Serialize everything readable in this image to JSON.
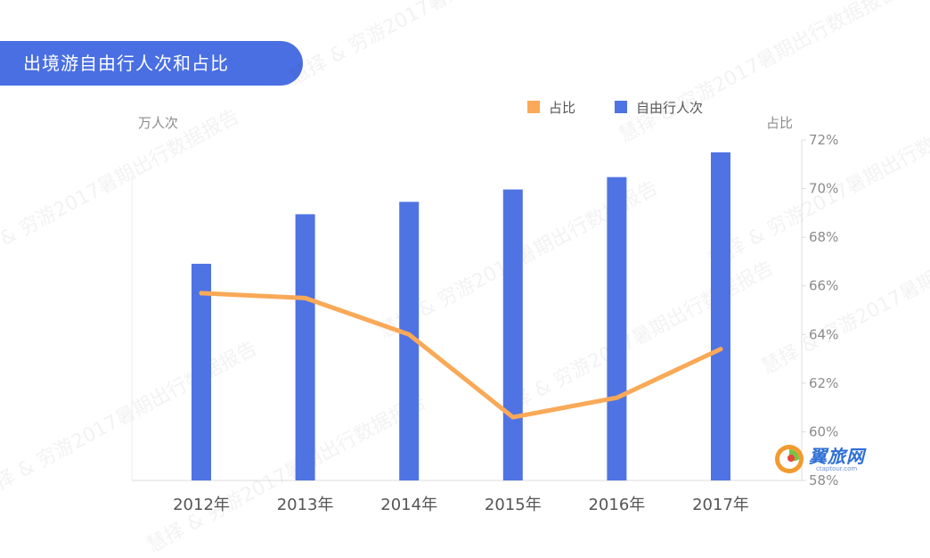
{
  "title": "出境游自由行人次和占比",
  "watermark": "慧择 & 穷游2017暑期出行数据报告",
  "logo": {
    "text": "翼旅网",
    "url": "ctaptour.com"
  },
  "colors": {
    "bar": "#4f73e3",
    "line": "#f9a957",
    "banner": "#4a6fe3",
    "axis_text": "#8c8c8c"
  },
  "chart_data": {
    "type": "bar",
    "categories": [
      "2012年",
      "2013年",
      "2014年",
      "2015年",
      "2016年",
      "2017年"
    ],
    "series": [
      {
        "name": "自由行人次",
        "type": "bar",
        "axis": "left",
        "values": [
          35,
          43,
          45,
          47,
          49,
          53
        ]
      },
      {
        "name": "占比",
        "type": "line",
        "axis": "right",
        "values": [
          65.7,
          65.5,
          64.0,
          60.6,
          61.4,
          63.4
        ],
        "unit": "%"
      }
    ],
    "left_axis": {
      "label": "万人次",
      "ylim": [
        0,
        55
      ],
      "tick_labels_shown": false
    },
    "right_axis": {
      "label": "占比",
      "ylim": [
        58,
        72
      ],
      "ticks": [
        "58%",
        "60%",
        "62%",
        "64%",
        "66%",
        "68%",
        "70%",
        "72%"
      ]
    },
    "legend": {
      "position": "top-right",
      "items": [
        "占比",
        "自由行人次"
      ]
    },
    "grid": false
  }
}
